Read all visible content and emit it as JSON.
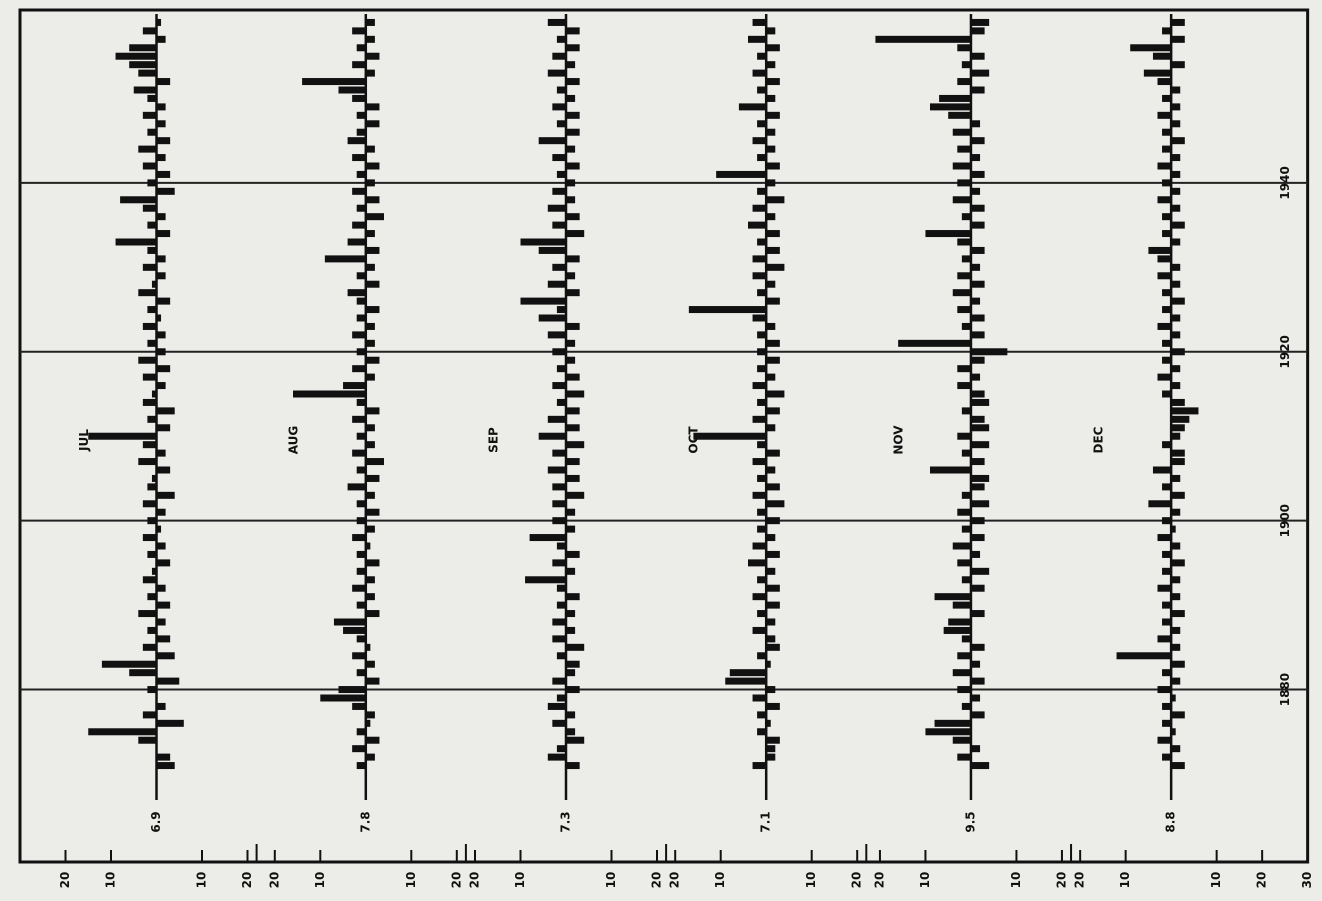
{
  "chart_data": {
    "type": "bar",
    "grid": true,
    "color": "#111111",
    "x": [
      1871,
      1872,
      1873,
      1874,
      1875,
      1876,
      1877,
      1878,
      1879,
      1880,
      1881,
      1882,
      1883,
      1884,
      1885,
      1886,
      1887,
      1888,
      1889,
      1890,
      1891,
      1892,
      1893,
      1894,
      1895,
      1896,
      1897,
      1898,
      1899,
      1900,
      1901,
      1902,
      1903,
      1904,
      1905,
      1906,
      1907,
      1908,
      1909,
      1910,
      1911,
      1912,
      1913,
      1914,
      1915,
      1916,
      1917,
      1918,
      1919,
      1920,
      1921,
      1922,
      1923,
      1924,
      1925,
      1926,
      1927,
      1928,
      1929,
      1930,
      1931,
      1932,
      1933,
      1934,
      1935,
      1936,
      1937,
      1938,
      1939,
      1940,
      1941,
      1942,
      1943,
      1944,
      1945,
      1946,
      1947,
      1948,
      1949,
      1950,
      1951,
      1952,
      1953,
      1954,
      1955,
      1956,
      1957,
      1958,
      1959
    ],
    "xlim": [
      1870,
      1960
    ],
    "xticks": [
      1880,
      1900,
      1920,
      1940
    ],
    "series": [
      {
        "name": "JUL",
        "normal": "6.9",
        "ylim": [
          -22,
          30
        ],
        "yticks": [
          20,
          10,
          {
            "value": -10,
            "label": "10"
          },
          {
            "value": -20,
            "label": "20"
          }
        ],
        "values": [
          -4,
          -3,
          0,
          4,
          15,
          -6,
          3,
          -2,
          0,
          2,
          -5,
          6,
          12,
          -4,
          3,
          -3,
          2,
          -2,
          4,
          -3,
          2,
          -2,
          3,
          1,
          -3,
          2,
          -2,
          3,
          -1,
          2,
          -2,
          3,
          -4,
          2,
          1,
          -3,
          4,
          -2,
          3,
          15,
          -3,
          2,
          -4,
          3,
          1,
          -2,
          3,
          -3,
          4,
          -2,
          2,
          -2,
          3,
          -1,
          2,
          -3,
          4,
          1,
          -2,
          3,
          -2,
          2,
          9,
          -3,
          2,
          -2,
          3,
          8,
          -4,
          2,
          -3,
          3,
          -2,
          4,
          -3,
          2,
          -2,
          3,
          -2,
          2,
          5,
          -3,
          4,
          6,
          9,
          6,
          -2,
          3,
          -1
        ]
      },
      {
        "name": "AUG",
        "normal": "7.8",
        "ylim": [
          -22,
          24
        ],
        "yticks": [
          20,
          10,
          {
            "value": -10,
            "label": "10"
          },
          {
            "value": -20,
            "label": "20"
          }
        ],
        "values": [
          2,
          -2,
          3,
          -3,
          2,
          -1,
          -2,
          3,
          10,
          6,
          -3,
          2,
          -2,
          3,
          -1,
          2,
          5,
          7,
          -3,
          2,
          -2,
          3,
          -2,
          2,
          -3,
          2,
          -1,
          3,
          -2,
          2,
          -3,
          2,
          -2,
          4,
          -3,
          2,
          -4,
          3,
          -2,
          2,
          -2,
          3,
          -3,
          2,
          16,
          5,
          -2,
          3,
          -3,
          2,
          -2,
          3,
          -2,
          2,
          -3,
          2,
          4,
          -3,
          2,
          -2,
          9,
          -3,
          4,
          -2,
          3,
          -4,
          2,
          -3,
          3,
          -2,
          2,
          -3,
          3,
          -2,
          4,
          2,
          -3,
          2,
          -3,
          3,
          6,
          14,
          -2,
          3,
          -3,
          2,
          -2,
          3,
          -2
        ]
      },
      {
        "name": "SEP",
        "normal": "7.3",
        "ylim": [
          -22,
          22
        ],
        "yticks": [
          20,
          10,
          {
            "value": -10,
            "label": "10"
          },
          {
            "value": -20,
            "label": "20"
          }
        ],
        "values": [
          -3,
          4,
          2,
          -4,
          -2,
          3,
          -2,
          4,
          2,
          -3,
          3,
          -2,
          -3,
          2,
          -4,
          3,
          -2,
          3,
          -2,
          2,
          -3,
          2,
          9,
          -2,
          3,
          -3,
          2,
          8,
          -2,
          3,
          -2,
          3,
          -4,
          3,
          -3,
          4,
          -3,
          3,
          -4,
          6,
          -3,
          4,
          -3,
          2,
          -4,
          3,
          -3,
          2,
          -2,
          3,
          -2,
          4,
          -3,
          6,
          2,
          10,
          -3,
          4,
          -2,
          3,
          -3,
          6,
          10,
          -4,
          3,
          -3,
          4,
          -2,
          3,
          -2,
          2,
          -3,
          3,
          -2,
          6,
          -3,
          2,
          -3,
          3,
          -2,
          2,
          -3,
          4,
          -2,
          3,
          -3,
          2,
          -3,
          4
        ]
      },
      {
        "name": "OCT",
        "normal": "7.1",
        "ylim": [
          -22,
          22
        ],
        "yticks": [
          20,
          10,
          {
            "value": -10,
            "label": "10"
          },
          {
            "value": -20,
            "label": "20"
          }
        ],
        "values": [
          3,
          -2,
          -2,
          -3,
          2,
          -1,
          2,
          -3,
          3,
          -2,
          9,
          8,
          -1,
          2,
          -3,
          -2,
          3,
          -2,
          2,
          -3,
          3,
          -3,
          2,
          -2,
          4,
          -3,
          3,
          -2,
          2,
          -3,
          2,
          -4,
          3,
          -3,
          2,
          -2,
          3,
          -3,
          2,
          16,
          -2,
          3,
          -3,
          2,
          -4,
          3,
          -2,
          2,
          -3,
          2,
          -3,
          2,
          -2,
          3,
          17,
          -3,
          2,
          -2,
          3,
          -4,
          3,
          -3,
          2,
          -3,
          4,
          -2,
          3,
          -4,
          2,
          -2,
          11,
          -3,
          2,
          -2,
          3,
          -2,
          2,
          -3,
          6,
          -2,
          2,
          -3,
          3,
          -2,
          2,
          -3,
          4,
          -2,
          3
        ]
      },
      {
        "name": "NOV",
        "normal": "9.5",
        "ylim": [
          -22,
          23
        ],
        "yticks": [
          20,
          10,
          {
            "value": -10,
            "label": "10"
          },
          {
            "value": -20,
            "label": "20"
          }
        ],
        "values": [
          -4,
          3,
          -2,
          4,
          10,
          8,
          -3,
          2,
          -2,
          3,
          -3,
          4,
          -2,
          3,
          -3,
          2,
          6,
          5,
          -3,
          4,
          8,
          -3,
          2,
          -4,
          3,
          -2,
          4,
          -3,
          2,
          -3,
          3,
          -4,
          2,
          -3,
          -4,
          9,
          -3,
          2,
          -4,
          3,
          -4,
          -3,
          2,
          -4,
          -3,
          3,
          -2,
          3,
          -3,
          -8,
          16,
          -3,
          2,
          -3,
          3,
          -2,
          4,
          -3,
          3,
          -2,
          2,
          -3,
          3,
          10,
          -3,
          2,
          -3,
          4,
          -2,
          3,
          -3,
          4,
          -2,
          3,
          -3,
          4,
          -2,
          5,
          9,
          7,
          -3,
          3,
          -4,
          2,
          -3,
          3,
          21,
          -3,
          -4
        ]
      },
      {
        "name": "DEC",
        "normal": "8.8",
        "ylim": [
          -30,
          22
        ],
        "yticks": [
          20,
          10,
          {
            "value": -10,
            "label": "10"
          },
          {
            "value": -20,
            "label": "20"
          },
          {
            "value": -30,
            "label": "30"
          }
        ],
        "values": [
          -3,
          2,
          -2,
          3,
          -1,
          2,
          -3,
          2,
          -1,
          3,
          -2,
          2,
          -3,
          12,
          -2,
          3,
          -2,
          2,
          -3,
          2,
          -2,
          3,
          -2,
          2,
          -3,
          2,
          -2,
          3,
          -1,
          2,
          -2,
          5,
          -3,
          2,
          -2,
          4,
          -3,
          -3,
          2,
          -2,
          -3,
          -4,
          -6,
          -3,
          2,
          -2,
          3,
          -2,
          2,
          -3,
          2,
          -2,
          3,
          -2,
          2,
          -3,
          2,
          -2,
          3,
          -2,
          3,
          5,
          -2,
          2,
          -3,
          2,
          -2,
          3,
          -2,
          2,
          -2,
          3,
          -2,
          2,
          -3,
          2,
          -2,
          3,
          -2,
          2,
          -2,
          3,
          6,
          -3,
          4,
          9,
          -3,
          2,
          -3
        ]
      }
    ]
  }
}
